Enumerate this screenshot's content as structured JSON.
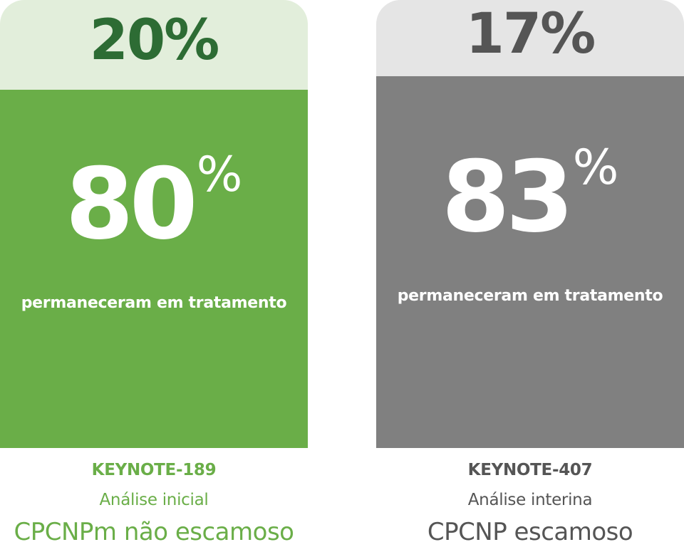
{
  "chart_data": [
    {
      "type": "stacked-bar",
      "trial": "KEYNOTE-189",
      "analysis": "Análise inicial",
      "population": "CPCNPm não escamoso",
      "discontinued_pct": 20,
      "remained_pct": 80,
      "discontinued_label": "20%",
      "remained_label": "80",
      "percent_sign": "%",
      "remained_caption": "permaneceram em tratamento",
      "colors": {
        "top": "#e2eedb",
        "bottom": "#6aae48",
        "top_text": "#2d6c34",
        "label_text": "#6aae48"
      }
    },
    {
      "type": "stacked-bar",
      "trial": "KEYNOTE-407",
      "analysis": "Análise interina",
      "population": "CPCNP escamoso",
      "discontinued_pct": 17,
      "remained_pct": 83,
      "discontinued_label": "17%",
      "remained_label": "83",
      "percent_sign": "%",
      "remained_caption": "permaneceram em tratamento",
      "colors": {
        "top": "#e5e5e5",
        "bottom": "#808080",
        "top_text": "#555555",
        "label_text": "#555555"
      }
    }
  ]
}
